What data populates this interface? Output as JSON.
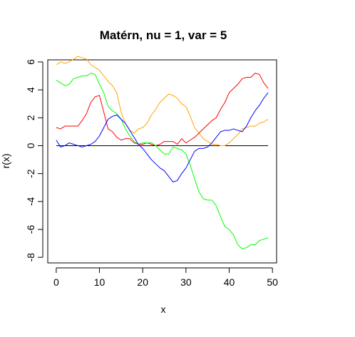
{
  "chart_data": {
    "type": "line",
    "title": "Matérn, nu = 1, var = 5",
    "xlabel": "x",
    "ylabel": "r(x)",
    "xlim": [
      -1.96,
      50.96
    ],
    "ylim": [
      -8.4,
      6.15
    ],
    "x_ticks": [
      0,
      10,
      20,
      30,
      40,
      50
    ],
    "y_ticks": [
      -8,
      -6,
      -4,
      -2,
      0,
      2,
      4,
      6
    ],
    "reference_line": {
      "y": 0,
      "color": "#000000"
    },
    "grid": false,
    "legend": "none",
    "x": [
      0,
      1,
      2,
      3,
      4,
      5,
      6,
      7,
      8,
      9,
      10,
      11,
      12,
      13,
      14,
      15,
      16,
      17,
      18,
      19,
      20,
      21,
      22,
      23,
      24,
      25,
      26,
      27,
      28,
      29,
      30,
      31,
      32,
      33,
      34,
      35,
      36,
      37,
      38,
      39,
      40,
      41,
      42,
      43,
      44,
      45,
      46,
      47,
      48,
      49
    ],
    "series": [
      {
        "color": "#FFA500",
        "values": [
          5.8,
          6.0,
          5.9,
          6.0,
          6.2,
          6.4,
          6.3,
          6.2,
          5.8,
          5.6,
          5.4,
          5.0,
          4.6,
          4.3,
          3.8,
          2.4,
          1.6,
          1.1,
          0.9,
          1.2,
          1.3,
          1.6,
          2.2,
          2.6,
          3.1,
          3.4,
          3.7,
          3.6,
          3.4,
          3.0,
          2.8,
          2.1,
          1.3,
          0.9,
          0.5,
          0.3,
          0.1,
          0.1,
          0.0,
          0.0,
          0.2,
          0.5,
          0.8,
          1.2,
          1.3,
          1.4,
          1.4,
          1.6,
          1.7,
          1.9
        ]
      },
      {
        "color": "#FF0000",
        "values": [
          1.3,
          1.2,
          1.4,
          1.4,
          1.4,
          1.4,
          1.8,
          2.3,
          3.1,
          3.5,
          3.6,
          2.4,
          1.2,
          1.0,
          0.6,
          0.4,
          0.5,
          0.5,
          0.2,
          0.1,
          0.1,
          0.2,
          0.1,
          0.0,
          0.1,
          0.3,
          0.3,
          0.3,
          0.1,
          0.5,
          0.2,
          0.4,
          0.6,
          0.9,
          1.2,
          1.5,
          1.8,
          2.0,
          2.6,
          3.1,
          3.8,
          4.1,
          4.4,
          4.8,
          4.9,
          4.9,
          5.2,
          5.1,
          4.5,
          4.1
        ]
      },
      {
        "color": "#00FF00",
        "values": [
          4.7,
          4.5,
          4.3,
          4.4,
          4.8,
          4.9,
          5.0,
          5.0,
          5.2,
          5.1,
          4.4,
          3.8,
          2.8,
          2.5,
          2.3,
          1.9,
          1.2,
          0.7,
          0.3,
          0.1,
          0.2,
          0.2,
          0.2,
          0.0,
          -0.3,
          -0.6,
          -0.6,
          -0.1,
          -0.2,
          -0.3,
          -0.6,
          -1.4,
          -2.4,
          -3.3,
          -3.8,
          -3.9,
          -3.9,
          -4.3,
          -5.1,
          -5.8,
          -6.0,
          -6.4,
          -7.1,
          -7.4,
          -7.3,
          -7.1,
          -7.1,
          -6.8,
          -6.7,
          -6.6
        ]
      },
      {
        "color": "#0000FF",
        "values": [
          0.4,
          -0.1,
          0.0,
          0.2,
          0.1,
          0.0,
          -0.1,
          0.0,
          0.1,
          0.3,
          0.7,
          1.3,
          1.9,
          2.1,
          2.2,
          1.9,
          1.6,
          1.1,
          0.6,
          0.1,
          -0.2,
          -0.6,
          -1.0,
          -1.3,
          -1.6,
          -1.8,
          -2.2,
          -2.6,
          -2.5,
          -2.0,
          -1.6,
          -1.0,
          -0.4,
          -0.2,
          -0.2,
          -0.1,
          0.2,
          0.6,
          1.0,
          1.1,
          1.1,
          1.2,
          1.1,
          1.0,
          1.4,
          2.0,
          2.5,
          2.9,
          3.4,
          3.8
        ]
      }
    ]
  }
}
